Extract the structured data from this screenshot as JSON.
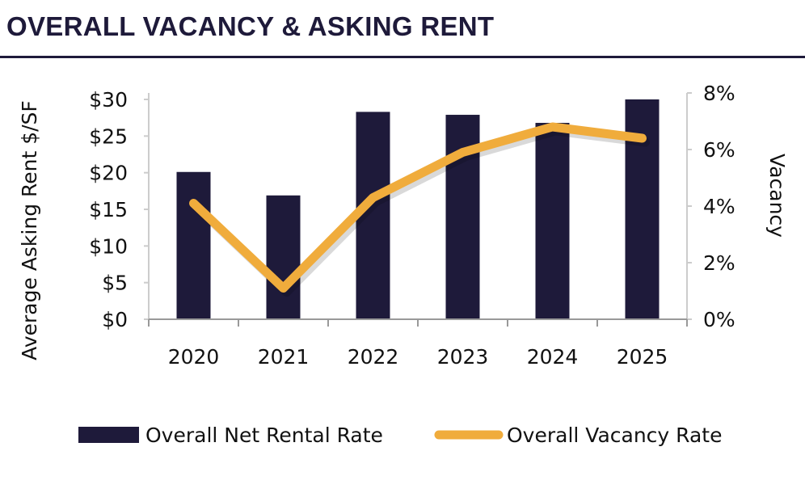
{
  "title": "OVERALL VACANCY & ASKING RENT",
  "chart_data": {
    "type": "bar+line",
    "categories": [
      "2020",
      "2021",
      "2022",
      "2023",
      "2024",
      "2025"
    ],
    "series": [
      {
        "name": "Overall Net Rental Rate",
        "type": "bar",
        "axis": "left",
        "color": "#1e1a3a",
        "values": [
          20.1,
          16.9,
          28.3,
          27.9,
          26.8,
          30.0
        ]
      },
      {
        "name": "Overall Vacancy Rate",
        "type": "line",
        "axis": "right",
        "color": "#f0ac3c",
        "values": [
          4.1,
          1.1,
          4.3,
          5.9,
          6.8,
          6.4
        ]
      }
    ],
    "ylabel": "Average Asking Rent $/SF",
    "y2label": "Vacancy",
    "ylim": [
      0,
      30
    ],
    "y2lim": [
      0,
      8
    ],
    "yticks": [
      "$0",
      "$5",
      "$10",
      "$15",
      "$20",
      "$25",
      "$30"
    ],
    "y2ticks": [
      "0%",
      "2%",
      "4%",
      "6%",
      "8%"
    ],
    "grid": false,
    "legend": "bottom"
  }
}
